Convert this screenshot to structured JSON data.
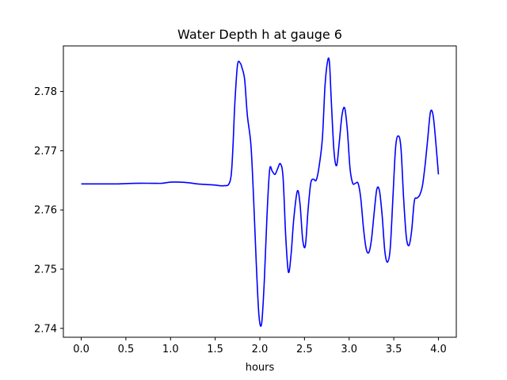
{
  "chart_data": {
    "type": "line",
    "title": "Water Depth h at gauge 6",
    "xlabel": "hours",
    "ylabel": "",
    "xlim": [
      -0.2,
      4.2
    ],
    "ylim": [
      2.7385,
      2.7877
    ],
    "x_ticks": [
      0.0,
      0.5,
      1.0,
      1.5,
      2.0,
      2.5,
      3.0,
      3.5,
      4.0
    ],
    "x_tick_labels": [
      "0.0",
      "0.5",
      "1.0",
      "1.5",
      "2.0",
      "2.5",
      "3.0",
      "3.5",
      "4.0"
    ],
    "y_ticks": [
      2.74,
      2.75,
      2.76,
      2.77,
      2.78
    ],
    "y_tick_labels": [
      "2.74",
      "2.75",
      "2.76",
      "2.77",
      "2.78"
    ],
    "grid": false,
    "series": [
      {
        "color": "#0000ff",
        "x": [
          0.0,
          0.2,
          0.4,
          0.6,
          0.8,
          0.9,
          1.0,
          1.1,
          1.2,
          1.3,
          1.4,
          1.5,
          1.55,
          1.6,
          1.65,
          1.68,
          1.7,
          1.72,
          1.75,
          1.78,
          1.8,
          1.83,
          1.86,
          1.9,
          1.93,
          1.96,
          1.99,
          2.02,
          2.05,
          2.08,
          2.11,
          2.14,
          2.17,
          2.2,
          2.23,
          2.26,
          2.29,
          2.32,
          2.35,
          2.38,
          2.42,
          2.45,
          2.48,
          2.51,
          2.54,
          2.57,
          2.6,
          2.63,
          2.66,
          2.7,
          2.73,
          2.76,
          2.78,
          2.8,
          2.83,
          2.86,
          2.89,
          2.92,
          2.95,
          2.98,
          3.01,
          3.04,
          3.07,
          3.1,
          3.13,
          3.16,
          3.19,
          3.22,
          3.25,
          3.28,
          3.31,
          3.34,
          3.37,
          3.4,
          3.43,
          3.46,
          3.49,
          3.52,
          3.55,
          3.58,
          3.61,
          3.64,
          3.67,
          3.7,
          3.73,
          3.76,
          3.79,
          3.82,
          3.85,
          3.88,
          3.91,
          3.94,
          3.97,
          4.0
        ],
        "y": [
          2.7644,
          2.7644,
          2.7644,
          2.7645,
          2.7645,
          2.7645,
          2.7647,
          2.7647,
          2.7646,
          2.7644,
          2.7643,
          2.7642,
          2.7641,
          2.7641,
          2.7643,
          2.766,
          2.771,
          2.778,
          2.7845,
          2.7848,
          2.784,
          2.782,
          2.776,
          2.771,
          2.762,
          2.751,
          2.7422,
          2.7408,
          2.748,
          2.759,
          2.7668,
          2.7665,
          2.766,
          2.767,
          2.7678,
          2.7655,
          2.7555,
          2.7495,
          2.7525,
          2.7585,
          2.7632,
          2.761,
          2.755,
          2.754,
          2.76,
          2.7645,
          2.7652,
          2.765,
          2.767,
          2.772,
          2.781,
          2.7852,
          2.7848,
          2.7785,
          2.77,
          2.7675,
          2.7715,
          2.776,
          2.7772,
          2.7735,
          2.767,
          2.7645,
          2.7645,
          2.7645,
          2.762,
          2.757,
          2.7535,
          2.7528,
          2.755,
          2.7595,
          2.7635,
          2.7632,
          2.759,
          2.753,
          2.7512,
          2.7535,
          2.762,
          2.7705,
          2.7725,
          2.7705,
          2.762,
          2.7555,
          2.754,
          2.7565,
          2.7615,
          2.762,
          2.7625,
          2.764,
          2.7675,
          2.772,
          2.7765,
          2.776,
          2.7715,
          2.766
        ]
      }
    ]
  }
}
